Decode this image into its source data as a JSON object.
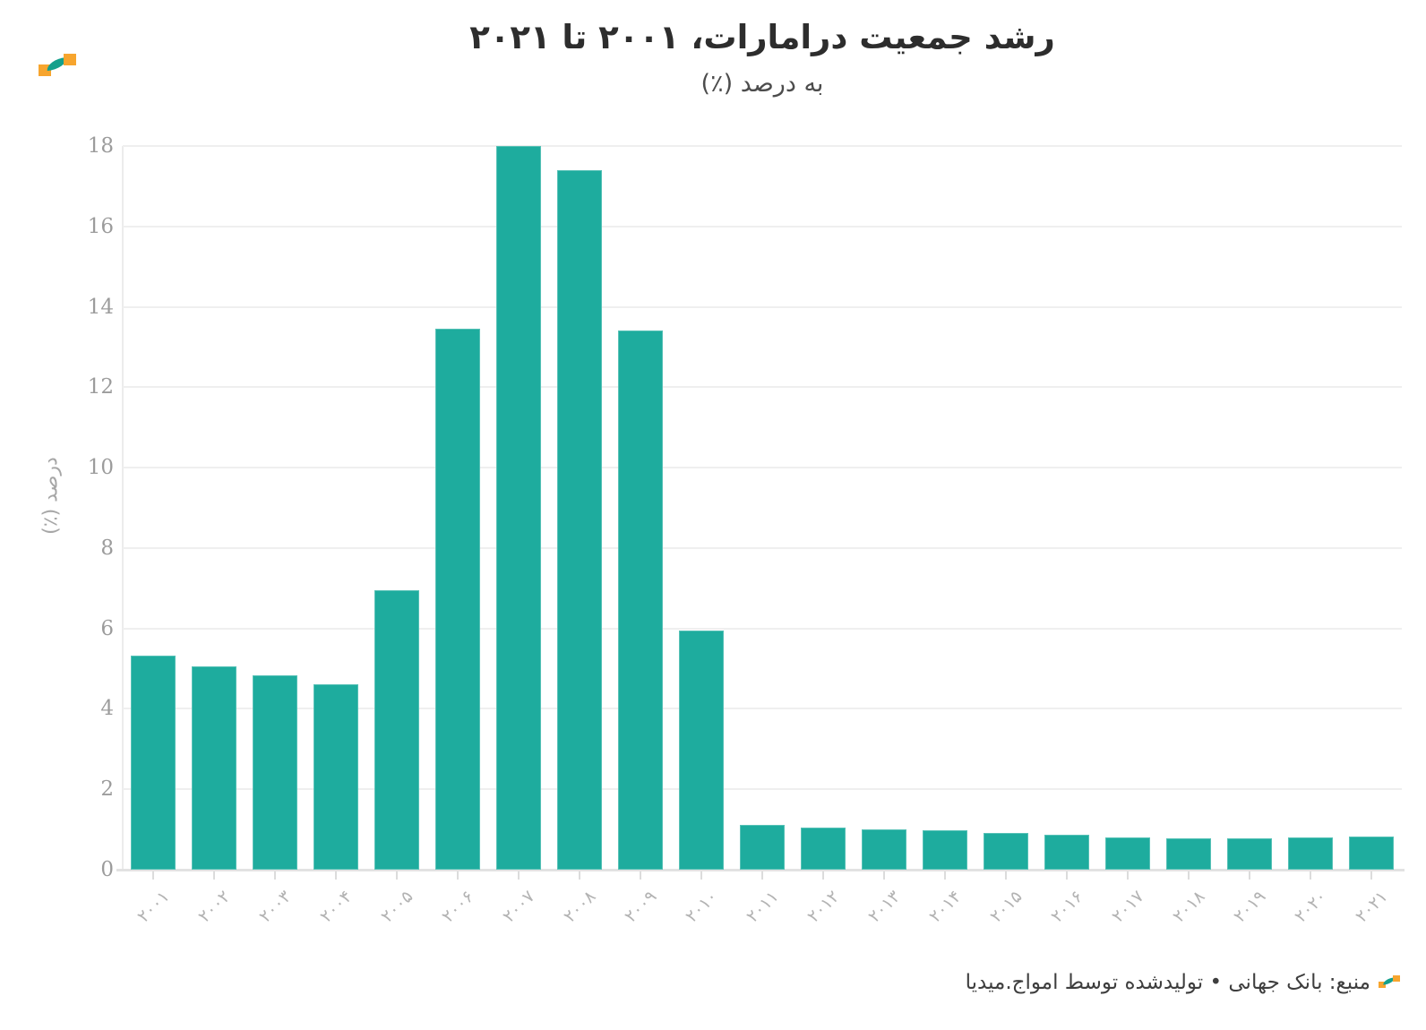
{
  "header": {
    "title": "رشد جمعیت درامارات، ۲۰۰۱ تا ۲۰۲۱",
    "subtitle": "به درصد (٪)"
  },
  "chart_data": {
    "type": "bar",
    "title": "رشد جمعیت درامارات، ۲۰۰۱ تا ۲۰۲۱",
    "subtitle": "به درصد (٪)",
    "categories": [
      "۲۰۰۱",
      "۲۰۰۲",
      "۲۰۰۳",
      "۲۰۰۴",
      "۲۰۰۵",
      "۲۰۰۶",
      "۲۰۰۷",
      "۲۰۰۸",
      "۲۰۰۹",
      "۲۰۱۰",
      "۲۰۱۱",
      "۲۰۱۲",
      "۲۰۱۳",
      "۲۰۱۴",
      "۲۰۱۵",
      "۲۰۱۶",
      "۲۰۱۷",
      "۲۰۱۸",
      "۲۰۱۹",
      "۲۰۲۰",
      "۲۰۲۱"
    ],
    "categories_value": [
      2001,
      2002,
      2003,
      2004,
      2005,
      2006,
      2007,
      2008,
      2009,
      2010,
      2011,
      2012,
      2013,
      2014,
      2015,
      2016,
      2017,
      2018,
      2019,
      2020,
      2021
    ],
    "values": [
      5.33,
      5.06,
      4.83,
      4.62,
      6.95,
      13.46,
      18.0,
      17.39,
      13.41,
      5.94,
      1.11,
      1.04,
      1.01,
      0.97,
      0.92,
      0.86,
      0.81,
      0.78,
      0.78,
      0.81,
      0.83
    ],
    "xlabel": "",
    "ylabel": "درصد (٪)",
    "ylim": [
      0,
      18
    ],
    "ytick_step": 2,
    "ytick_labels": [
      "0",
      "2",
      "4",
      "6",
      "8",
      "10",
      "12",
      "14",
      "16",
      "18"
    ],
    "grid": "horizontal-only",
    "legend": "none",
    "bar_color": "#1eac9e",
    "x_labels_rotation_deg": -45
  },
  "footer": {
    "source_text": "منبع: بانک جهانی • تولیدشده توسط امواج.میدیا"
  },
  "colors": {
    "bar": "#1eac9e",
    "grid": "#efefef",
    "axis_line": "#e2e2e2",
    "tick_label": "#9c9c9c",
    "x_tick_label": "#b3b3b3",
    "title": "#2d2d2d",
    "subtitle": "#4c4c4c",
    "footer_text": "#3e3e3e",
    "logo_orange": "#f7a52e",
    "logo_teal": "#14a08c"
  },
  "icons": {
    "brand_logo": "amwaj-media-wave-logo"
  }
}
